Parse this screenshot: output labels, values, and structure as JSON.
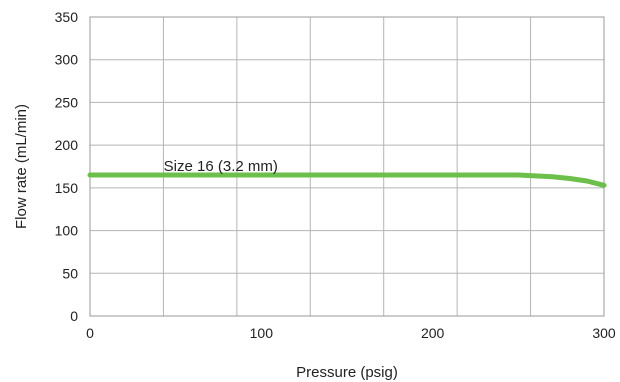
{
  "chart_data": {
    "type": "line",
    "title": "",
    "xlabel": "Pressure (psig)",
    "ylabel": "Flow rate (mL/min)",
    "xlim": [
      0,
      300
    ],
    "ylim": [
      0,
      350
    ],
    "x_ticks": [
      0,
      100,
      200,
      300
    ],
    "y_ticks": [
      0,
      50,
      100,
      150,
      200,
      250,
      300,
      350
    ],
    "grid": true,
    "series": [
      {
        "color": "#6cbf4a",
        "x": [
          0,
          50,
          100,
          150,
          200,
          250,
          260,
          270,
          280,
          290,
          300
        ],
        "y": [
          165,
          165,
          165,
          165,
          165,
          165,
          164,
          163,
          161,
          158,
          153
        ]
      }
    ],
    "annotations": [
      {
        "text": "Size 16 (3.2 mm)",
        "x": 43,
        "y": 170
      }
    ]
  }
}
